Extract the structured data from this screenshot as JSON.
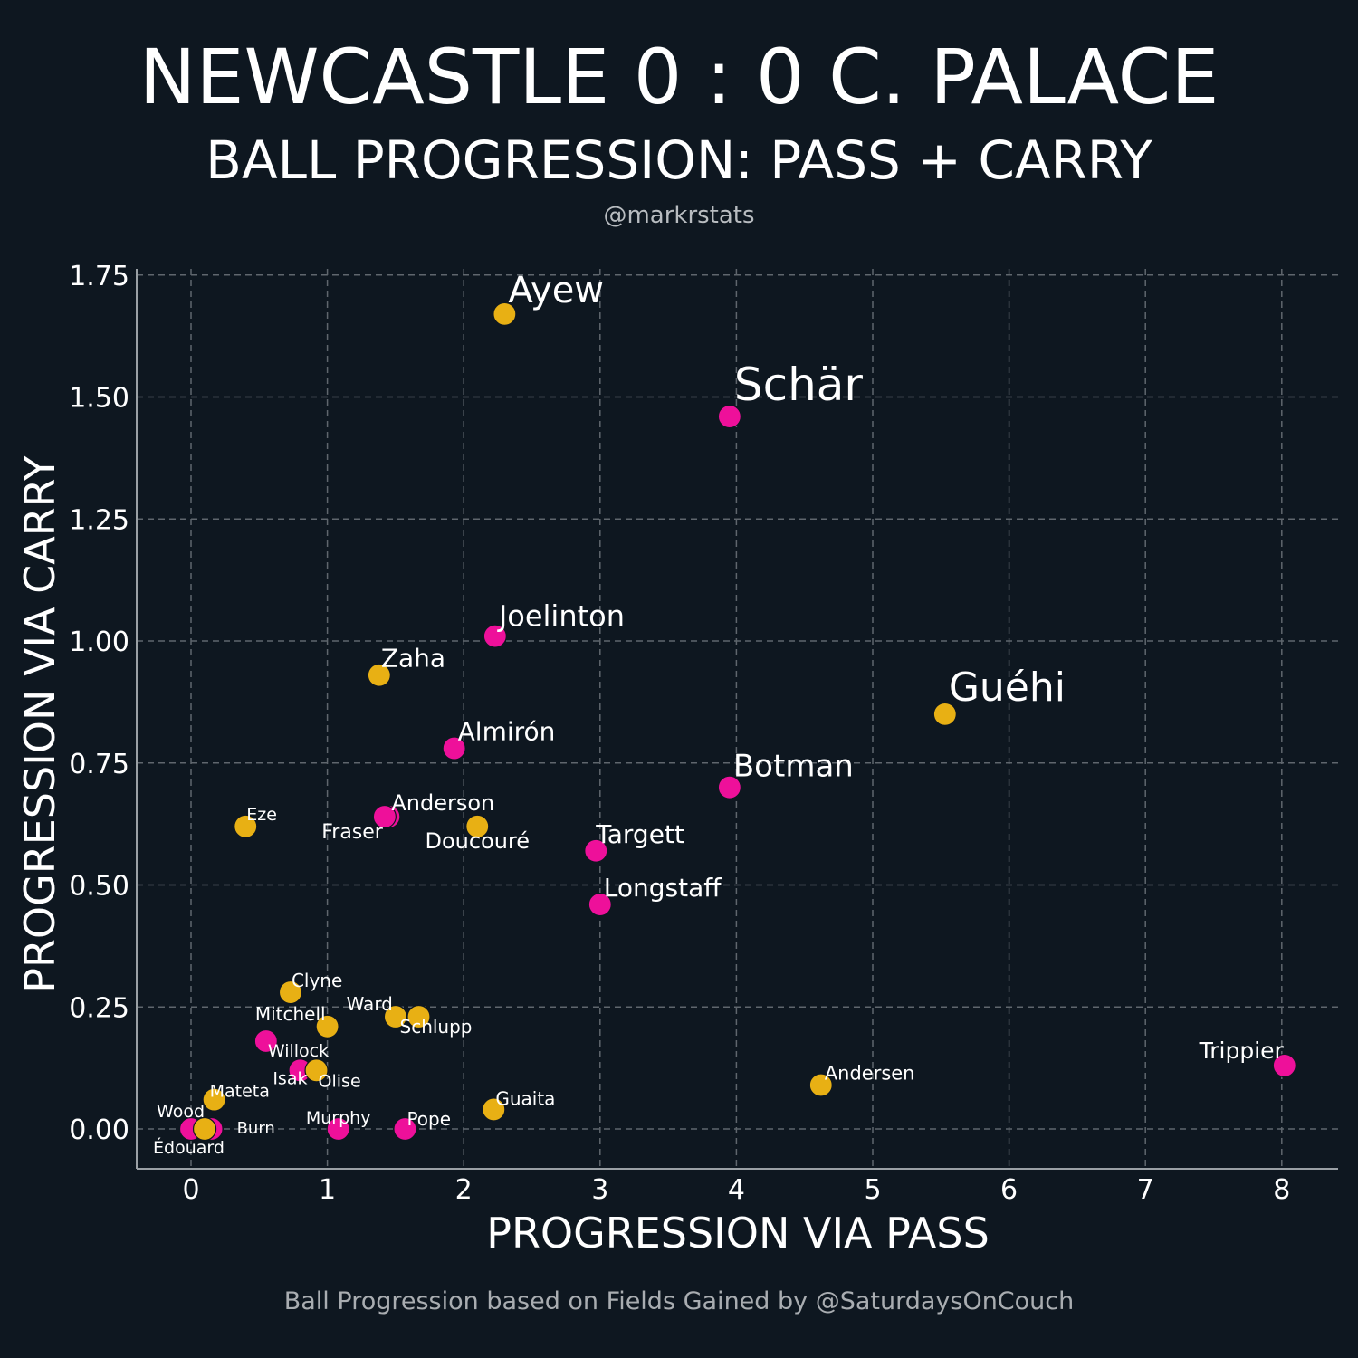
{
  "header": {
    "title": "NEWCASTLE 0 : 0 C. PALACE",
    "subtitle": "BALL PROGRESSION: PASS + CARRY",
    "handle": "@markrstats"
  },
  "footer": {
    "caption": "Ball Progression based on Fields Gained by @SaturdaysOnCouch"
  },
  "colors": {
    "background": "#0e1720",
    "newcastle": "#ee109a",
    "palace": "#e8b014"
  },
  "chart_data": {
    "type": "scatter",
    "xlabel": "PROGRESSION VIA PASS",
    "ylabel": "PROGRESSION VIA CARRY",
    "xlim": [
      -0.4,
      8.4
    ],
    "ylim": [
      -0.08,
      1.75
    ],
    "xticks": [
      0,
      1,
      2,
      3,
      4,
      5,
      6,
      7,
      8
    ],
    "yticks": [
      0,
      0.25,
      0.5,
      0.75,
      1.0,
      1.25,
      1.5,
      1.75
    ],
    "ytick_labels": [
      "0.00",
      "0.25",
      "0.50",
      "0.75",
      "1.00",
      "1.25",
      "1.50",
      "1.75"
    ],
    "grid": true,
    "series": [
      {
        "team": "newcastle",
        "points": [
          {
            "label": "Schär",
            "x": 3.95,
            "y": 1.46
          },
          {
            "label": "Joelinton",
            "x": 2.23,
            "y": 1.01
          },
          {
            "label": "Almirón",
            "x": 1.93,
            "y": 0.78
          },
          {
            "label": "Botman",
            "x": 3.95,
            "y": 0.7
          },
          {
            "label": "Anderson",
            "x": 1.45,
            "y": 0.64
          },
          {
            "label": "Fraser",
            "x": 1.42,
            "y": 0.64
          },
          {
            "label": "Targett",
            "x": 2.97,
            "y": 0.57
          },
          {
            "label": "Longstaff",
            "x": 3.0,
            "y": 0.46
          },
          {
            "label": "Trippier",
            "x": 8.02,
            "y": 0.13
          },
          {
            "label": "Willock",
            "x": 0.55,
            "y": 0.18
          },
          {
            "label": "Isak",
            "x": 0.8,
            "y": 0.12
          },
          {
            "label": "Murphy",
            "x": 1.08,
            "y": 0.0
          },
          {
            "label": "Pope",
            "x": 1.57,
            "y": 0.0
          },
          {
            "label": "Wood",
            "x": 0.0,
            "y": 0.0
          },
          {
            "label": "Burn",
            "x": 0.15,
            "y": 0.0
          }
        ]
      },
      {
        "team": "palace",
        "points": [
          {
            "label": "Ayew",
            "x": 2.3,
            "y": 1.67
          },
          {
            "label": "Guéhi",
            "x": 5.53,
            "y": 0.85
          },
          {
            "label": "Zaha",
            "x": 1.38,
            "y": 0.93
          },
          {
            "label": "Eze",
            "x": 0.4,
            "y": 0.62
          },
          {
            "label": "Doucouré",
            "x": 2.1,
            "y": 0.62
          },
          {
            "label": "Clyne",
            "x": 0.73,
            "y": 0.28
          },
          {
            "label": "Mitchell",
            "x": 1.0,
            "y": 0.21
          },
          {
            "label": "Ward",
            "x": 1.5,
            "y": 0.23
          },
          {
            "label": "Schlupp",
            "x": 1.67,
            "y": 0.23
          },
          {
            "label": "Olise",
            "x": 0.92,
            "y": 0.12
          },
          {
            "label": "Andersen",
            "x": 4.62,
            "y": 0.09
          },
          {
            "label": "Guaita",
            "x": 2.22,
            "y": 0.04
          },
          {
            "label": "Mateta",
            "x": 0.17,
            "y": 0.06
          },
          {
            "label": "Édouard",
            "x": 0.1,
            "y": 0.0
          }
        ]
      }
    ]
  }
}
